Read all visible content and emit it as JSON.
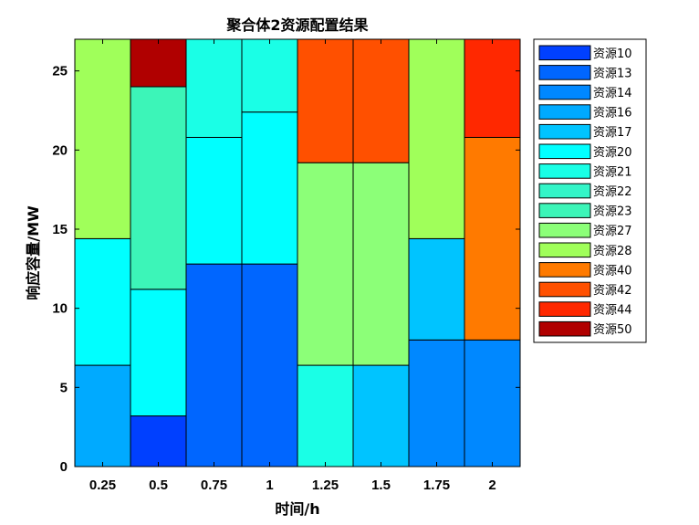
{
  "chart_data": {
    "type": "bar",
    "stacked": true,
    "title": "聚合体2资源配置结果",
    "xlabel": "时间/h",
    "ylabel": "响应容量/MW",
    "categories": [
      "0.25",
      "0.5",
      "0.75",
      "1",
      "1.25",
      "1.5",
      "1.75",
      "2"
    ],
    "ylim": [
      0,
      27
    ],
    "yticks": [
      0,
      5,
      10,
      15,
      20,
      25
    ],
    "grid": false,
    "legend_position": "outside-right",
    "series": [
      {
        "name": "资源10",
        "color": "#0040ff",
        "values": [
          0,
          3.2,
          0,
          0,
          0,
          0,
          0,
          0
        ]
      },
      {
        "name": "资源13",
        "color": "#0066ff",
        "values": [
          0,
          0,
          12.8,
          12.8,
          0,
          0,
          0,
          0
        ]
      },
      {
        "name": "资源14",
        "color": "#0088ff",
        "values": [
          0,
          0,
          0,
          0,
          0,
          0,
          8.0,
          8.0
        ]
      },
      {
        "name": "资源16",
        "color": "#00aaff",
        "values": [
          6.4,
          0,
          0,
          0,
          0,
          0,
          0,
          0
        ]
      },
      {
        "name": "资源17",
        "color": "#00c4ff",
        "values": [
          0,
          0,
          0,
          0,
          0,
          6.4,
          6.4,
          0
        ]
      },
      {
        "name": "资源20",
        "color": "#00ffff",
        "values": [
          8.0,
          8.0,
          8.0,
          9.6,
          0,
          0,
          0,
          0
        ]
      },
      {
        "name": "资源21",
        "color": "#1affe6",
        "values": [
          0,
          0,
          6.2,
          4.6,
          6.4,
          0,
          0,
          0
        ]
      },
      {
        "name": "资源22",
        "color": "#33f5c8",
        "values": [
          0,
          0,
          0,
          0,
          0,
          0,
          0,
          0
        ]
      },
      {
        "name": "资源23",
        "color": "#3cf5b8",
        "values": [
          0,
          12.8,
          0,
          0,
          0,
          0,
          0,
          0
        ]
      },
      {
        "name": "资源27",
        "color": "#8cff78",
        "values": [
          0,
          0,
          0,
          0,
          12.8,
          12.8,
          0,
          0
        ]
      },
      {
        "name": "资源28",
        "color": "#a0ff5a",
        "values": [
          12.6,
          0,
          0,
          0,
          0,
          0,
          12.6,
          0
        ]
      },
      {
        "name": "资源40",
        "color": "#ff7a00",
        "values": [
          0,
          0,
          0,
          0,
          0,
          0,
          0,
          12.8
        ]
      },
      {
        "name": "资源42",
        "color": "#ff5000",
        "values": [
          0,
          0,
          0,
          0,
          7.8,
          7.8,
          0,
          0
        ]
      },
      {
        "name": "资源44",
        "color": "#ff2800",
        "values": [
          0,
          0,
          0,
          0,
          0,
          0,
          0,
          6.2
        ]
      },
      {
        "name": "资源50",
        "color": "#b00000",
        "values": [
          0,
          3.0,
          0,
          0,
          0,
          0,
          0,
          0
        ]
      }
    ]
  }
}
